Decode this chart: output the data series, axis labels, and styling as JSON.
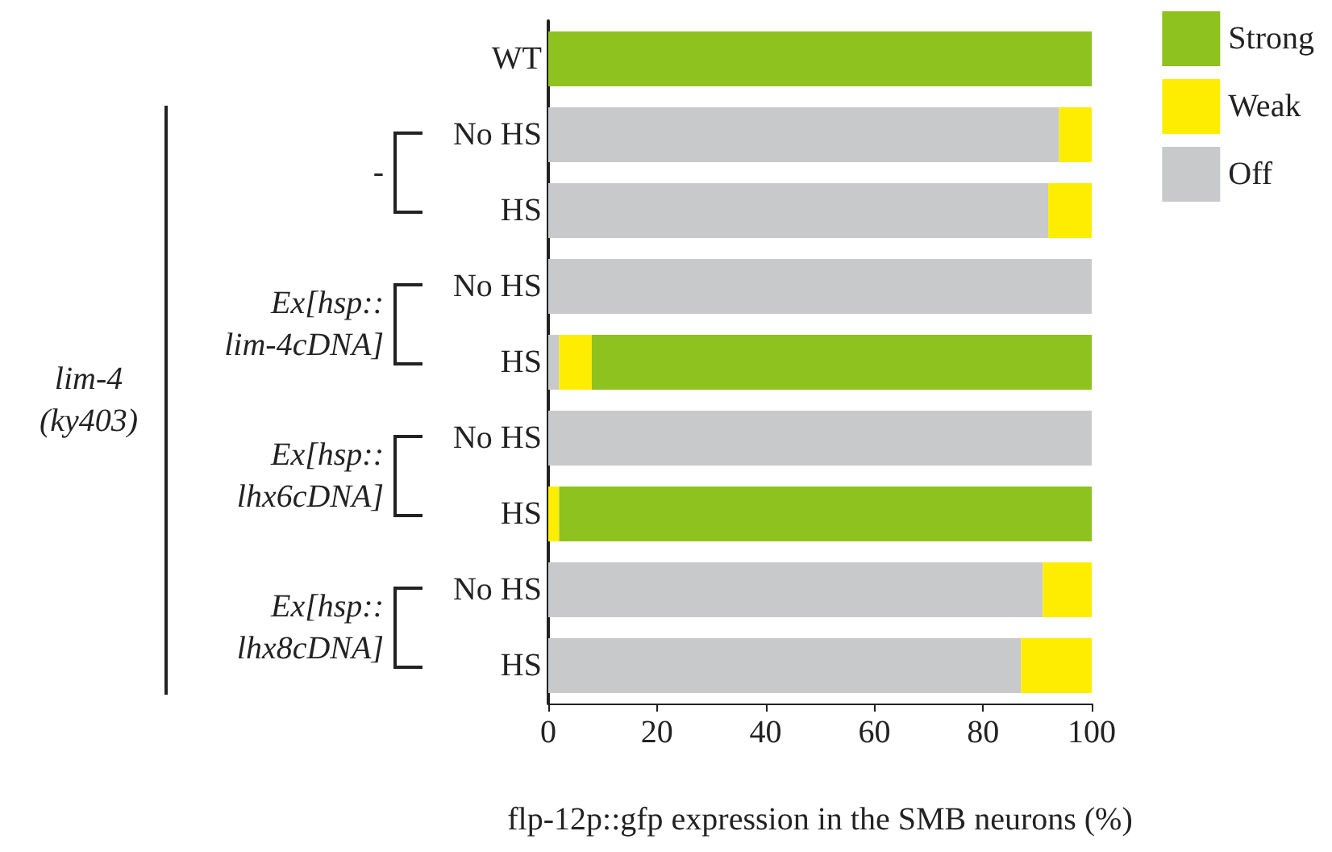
{
  "chart_data": {
    "type": "bar",
    "orientation": "horizontal",
    "stacked": true,
    "categories": [
      "WT",
      "No HS",
      "HS",
      "No HS",
      "HS",
      "No HS",
      "HS",
      "No HS",
      "HS"
    ],
    "series": [
      {
        "name": "Off",
        "color": "#c8c9ca",
        "values": [
          0,
          94,
          92,
          100,
          2,
          100,
          0,
          91,
          87
        ]
      },
      {
        "name": "Weak",
        "color": "#ffed00",
        "values": [
          0,
          6,
          8,
          0,
          6,
          0,
          2,
          9,
          13
        ]
      },
      {
        "name": "Strong",
        "color": "#8dc21f",
        "values": [
          100,
          0,
          0,
          0,
          92,
          0,
          98,
          0,
          0
        ]
      }
    ],
    "xlim": [
      0,
      100
    ],
    "xticks": [
      0,
      20,
      40,
      60,
      80,
      100
    ],
    "xlabel": "flp-12p::gfp expression in the SMB neurons (%)",
    "annotations": [
      "-",
      "Ex[hsp::\nlim-4cDNA]",
      "Ex[hsp::\nlhx6cDNA]",
      "Ex[hsp::\nlhx8cDNA]",
      "lim-4\n(ky403)"
    ],
    "legend": "top right",
    "grid": false
  }
}
